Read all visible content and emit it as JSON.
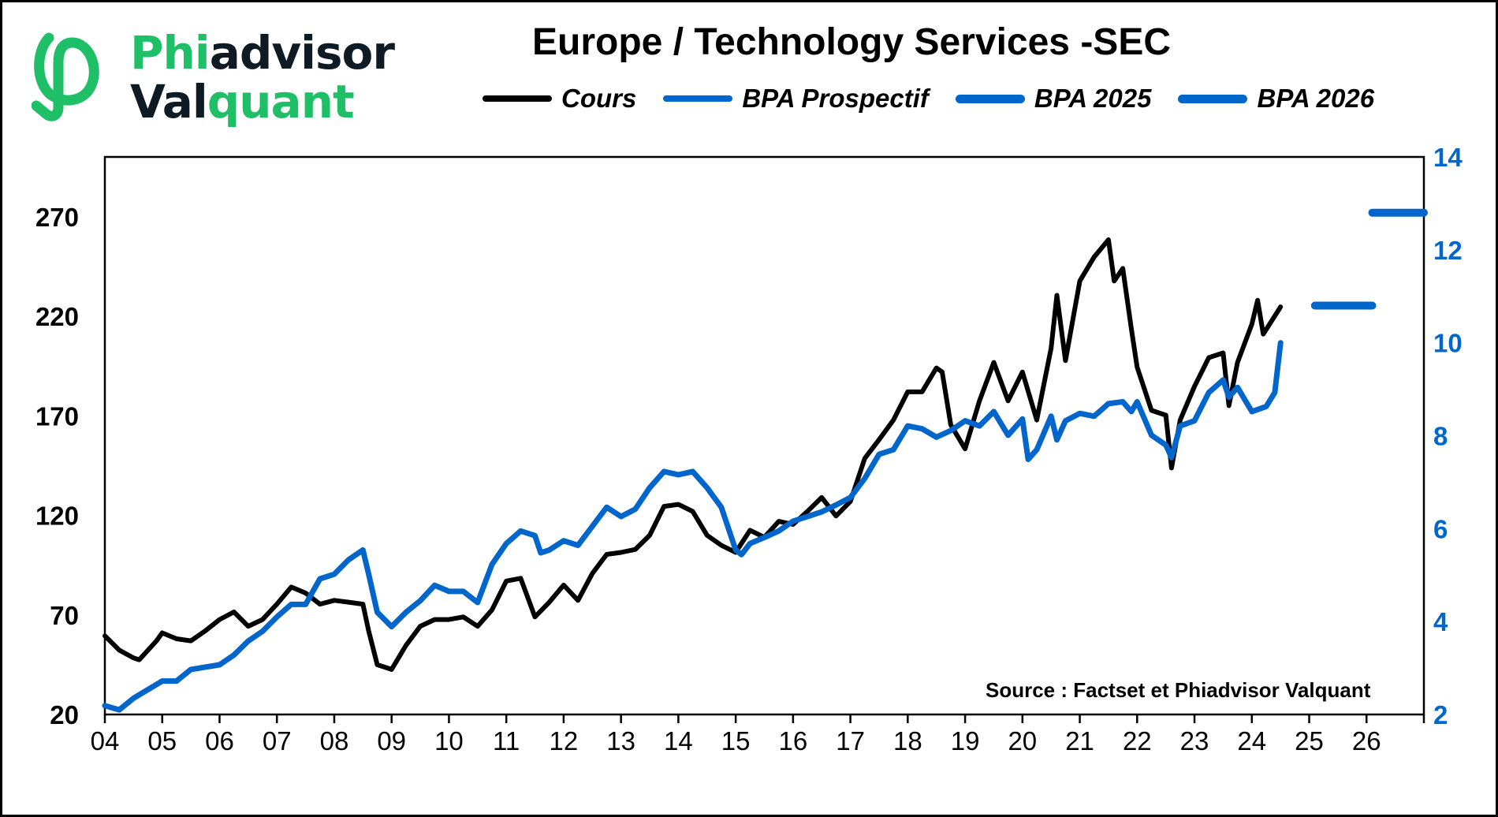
{
  "logo": {
    "part1": "Phi",
    "part2": "advisor",
    "part3": "Val",
    "part4": "quant"
  },
  "source_note": "Source : Factset et Phiadvisor Valquant",
  "colors": {
    "cours": "#000000",
    "bpa": "#0066CC",
    "left_axis": "#000000",
    "right_axis": "#0066CC",
    "logo_green": "#1fbf67",
    "logo_dark": "#0e1a24"
  },
  "chart_data": {
    "type": "line",
    "title": "Europe / Technology Services -SEC",
    "legend": [
      "Cours",
      "BPA Prospectif",
      "BPA 2025",
      "BPA 2026"
    ],
    "legend_position": "top",
    "xlabel": "",
    "ylabel": "",
    "y2label": "",
    "x_tick_labels": [
      "04",
      "05",
      "06",
      "07",
      "08",
      "09",
      "10",
      "11",
      "12",
      "13",
      "14",
      "15",
      "16",
      "17",
      "18",
      "19",
      "20",
      "21",
      "22",
      "23",
      "24",
      "25",
      "26"
    ],
    "xlim": [
      2004,
      2027
    ],
    "ylim": [
      20,
      300
    ],
    "y_ticks": [
      20,
      70,
      120,
      170,
      220,
      270
    ],
    "y2lim": [
      2,
      14
    ],
    "y2_ticks": [
      2,
      4,
      6,
      8,
      10,
      12,
      14
    ],
    "grid": false,
    "series": [
      {
        "name": "Cours",
        "axis": "left",
        "x": [
          2004.0,
          2004.25,
          2004.5,
          2004.6,
          2004.9,
          2005.0,
          2005.25,
          2005.5,
          2005.75,
          2006.0,
          2006.25,
          2006.5,
          2006.75,
          2007.0,
          2007.25,
          2007.5,
          2007.75,
          2008.0,
          2008.25,
          2008.5,
          2008.6,
          2008.75,
          2009.0,
          2009.25,
          2009.5,
          2009.75,
          2010.0,
          2010.25,
          2010.5,
          2010.75,
          2011.0,
          2011.25,
          2011.5,
          2011.75,
          2012.0,
          2012.25,
          2012.5,
          2012.75,
          2013.0,
          2013.25,
          2013.5,
          2013.75,
          2014.0,
          2014.25,
          2014.5,
          2014.75,
          2015.0,
          2015.25,
          2015.5,
          2015.75,
          2016.0,
          2016.25,
          2016.5,
          2016.75,
          2017.0,
          2017.25,
          2017.5,
          2017.75,
          2018.0,
          2018.25,
          2018.5,
          2018.6,
          2018.75,
          2019.0,
          2019.25,
          2019.5,
          2019.75,
          2020.0,
          2020.25,
          2020.5,
          2020.6,
          2020.75,
          2021.0,
          2021.25,
          2021.5,
          2021.6,
          2021.75,
          2021.9,
          2022.0,
          2022.25,
          2022.5,
          2022.6,
          2022.75,
          2023.0,
          2023.25,
          2023.5,
          2023.6,
          2023.75,
          2024.0,
          2024.1,
          2024.2,
          2024.5
        ],
        "values": [
          59.5,
          52.3,
          48.4,
          47.5,
          57,
          61,
          58,
          57,
          62,
          67.7,
          71.5,
          64.3,
          67.7,
          75.4,
          84,
          81,
          75.4,
          77.3,
          76.4,
          75.4,
          62,
          45,
          42.6,
          54.7,
          64.3,
          67.7,
          67.7,
          69,
          64.3,
          72.5,
          87,
          88.4,
          69,
          76.4,
          85,
          77.3,
          90.8,
          100.4,
          101.4,
          102.9,
          110,
          124.5,
          125.5,
          122,
          110,
          105,
          101.4,
          112.5,
          109,
          117,
          115.5,
          122,
          129,
          119.7,
          127,
          148.6,
          158,
          167.9,
          182,
          182,
          194,
          192,
          165.5,
          153.4,
          177.5,
          196.8,
          177.5,
          192,
          167.9,
          204,
          230.5,
          197.7,
          237.7,
          249.8,
          258.4,
          237.7,
          244,
          213.6,
          194.4,
          172.7,
          170.3,
          143.8,
          167.9,
          184.7,
          199.2,
          201.6,
          175.1,
          196.8,
          216,
          228,
          211,
          224.7
        ]
      },
      {
        "name": "BPA Prospectif",
        "axis": "right",
        "x": [
          2004.0,
          2004.25,
          2004.5,
          2005.0,
          2005.25,
          2005.5,
          2006.0,
          2006.25,
          2006.5,
          2006.75,
          2007.0,
          2007.25,
          2007.5,
          2007.75,
          2008.0,
          2008.25,
          2008.5,
          2008.6,
          2008.75,
          2009.0,
          2009.25,
          2009.5,
          2009.75,
          2010.0,
          2010.25,
          2010.5,
          2010.75,
          2011.0,
          2011.25,
          2011.5,
          2011.6,
          2011.75,
          2012.0,
          2012.25,
          2012.5,
          2012.75,
          2013.0,
          2013.25,
          2013.5,
          2013.75,
          2014.0,
          2014.25,
          2014.5,
          2014.75,
          2015.0,
          2015.1,
          2015.25,
          2015.5,
          2015.75,
          2016.0,
          2016.25,
          2016.5,
          2016.75,
          2017.0,
          2017.25,
          2017.5,
          2017.75,
          2018.0,
          2018.25,
          2018.5,
          2018.75,
          2019.0,
          2019.25,
          2019.5,
          2019.75,
          2020.0,
          2020.1,
          2020.25,
          2020.5,
          2020.6,
          2020.75,
          2021.0,
          2021.25,
          2021.5,
          2021.75,
          2021.9,
          2022.0,
          2022.25,
          2022.5,
          2022.6,
          2022.75,
          2023.0,
          2023.25,
          2023.5,
          2023.6,
          2023.75,
          2024.0,
          2024.25,
          2024.4,
          2024.5
        ],
        "values": [
          2.19,
          2.1,
          2.35,
          2.72,
          2.72,
          2.97,
          3.07,
          3.28,
          3.58,
          3.79,
          4.1,
          4.37,
          4.37,
          4.92,
          5.02,
          5.33,
          5.54,
          5.02,
          4.2,
          3.89,
          4.2,
          4.45,
          4.78,
          4.65,
          4.65,
          4.41,
          5.23,
          5.68,
          5.95,
          5.85,
          5.48,
          5.54,
          5.74,
          5.64,
          6.05,
          6.46,
          6.26,
          6.42,
          6.88,
          7.23,
          7.16,
          7.23,
          6.88,
          6.46,
          5.54,
          5.44,
          5.68,
          5.81,
          5.95,
          6.16,
          6.26,
          6.36,
          6.51,
          6.67,
          7.08,
          7.6,
          7.7,
          8.21,
          8.15,
          7.97,
          8.11,
          8.32,
          8.21,
          8.52,
          8.01,
          8.36,
          7.49,
          7.7,
          8.42,
          7.91,
          8.32,
          8.48,
          8.42,
          8.69,
          8.73,
          8.52,
          8.73,
          8.01,
          7.8,
          7.53,
          8.21,
          8.32,
          8.93,
          9.2,
          8.83,
          9.04,
          8.52,
          8.63,
          8.93,
          10.0
        ]
      },
      {
        "name": "BPA 2025",
        "axis": "right",
        "x": [
          2025.1,
          2026.1
        ],
        "values": [
          10.8,
          10.8
        ]
      },
      {
        "name": "BPA 2026",
        "axis": "right",
        "x": [
          2026.1,
          2027.0
        ],
        "values": [
          12.8,
          12.8
        ]
      }
    ]
  }
}
